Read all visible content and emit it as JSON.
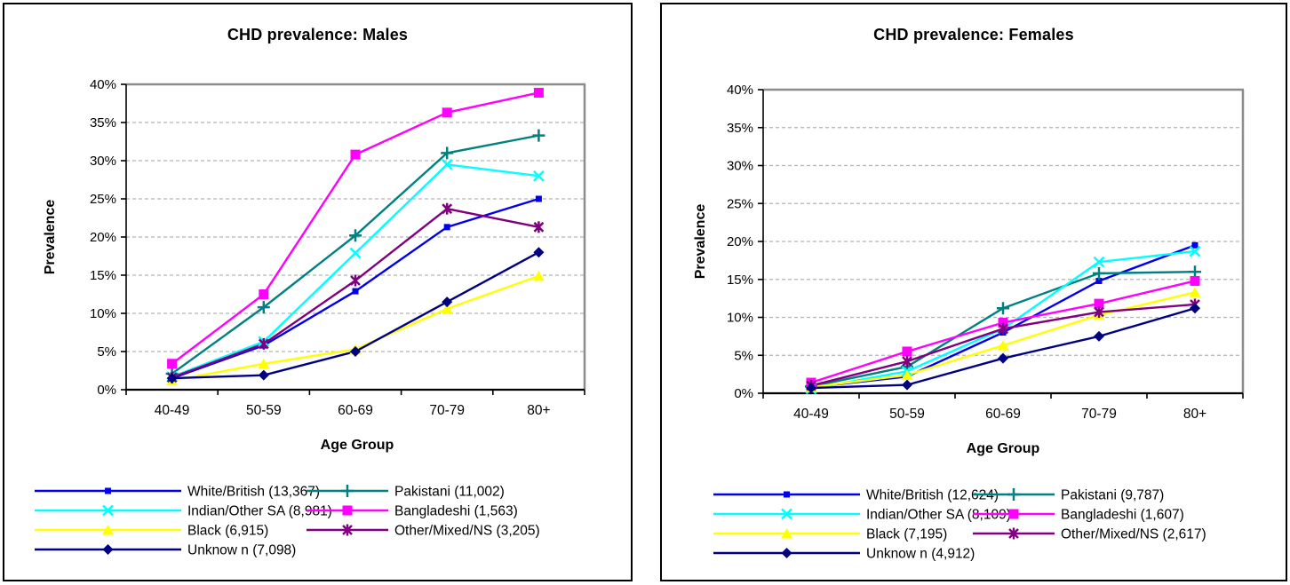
{
  "chart_data": [
    {
      "type": "line",
      "title": "CHD prevalence: Males",
      "xlabel": "Age Group",
      "ylabel": "Prevalence",
      "categories": [
        "40-49",
        "50-59",
        "60-69",
        "70-79",
        "80+"
      ],
      "ylim": [
        0,
        40
      ],
      "ytick_labels": [
        "0%",
        "5%",
        "10%",
        "15%",
        "20%",
        "25%",
        "30%",
        "35%",
        "40%"
      ],
      "grid": "horizontal dashed",
      "legend_position": "bottom two-column",
      "series": [
        {
          "name": "White/British (13,367)",
          "color": "#0000EE",
          "marker": "square-small",
          "values": [
            1.5,
            5.8,
            12.9,
            21.3,
            25.0
          ]
        },
        {
          "name": "Pakistani (11,002)",
          "color": "#008080",
          "marker": "plus",
          "values": [
            2.1,
            10.8,
            20.2,
            31.0,
            33.3
          ]
        },
        {
          "name": "Indian/Other SA (8,981)",
          "color": "#00FFFF",
          "marker": "x",
          "values": [
            1.7,
            6.3,
            17.9,
            29.5,
            28.0
          ]
        },
        {
          "name": "Bangladeshi (1,563)",
          "color": "#FF00FF",
          "marker": "square",
          "values": [
            3.4,
            12.5,
            30.8,
            36.3,
            38.9
          ]
        },
        {
          "name": "Black (6,915)",
          "color": "#FFFF00",
          "marker": "triangle",
          "values": [
            1.2,
            3.4,
            5.3,
            10.6,
            14.9
          ]
        },
        {
          "name": "Other/Mixed/NS (3,205)",
          "color": "#800080",
          "marker": "asterisk",
          "values": [
            1.6,
            6.0,
            14.3,
            23.7,
            21.3
          ]
        },
        {
          "name": "Unknow n (7,098)",
          "color": "#000080",
          "marker": "diamond",
          "values": [
            1.5,
            1.9,
            5.0,
            11.5,
            18.0
          ]
        }
      ]
    },
    {
      "type": "line",
      "title": "CHD prevalence: Females",
      "xlabel": "Age Group",
      "ylabel": "Prevalence",
      "categories": [
        "40-49",
        "50-59",
        "60-69",
        "70-79",
        "80+"
      ],
      "ylim": [
        0,
        40
      ],
      "ytick_labels": [
        "0%",
        "5%",
        "10%",
        "15%",
        "20%",
        "25%",
        "30%",
        "35%",
        "40%"
      ],
      "grid": "horizontal dashed",
      "legend_position": "bottom two-column",
      "series": [
        {
          "name": "White/British (12,624)",
          "color": "#0000EE",
          "marker": "square-small",
          "values": [
            0.8,
            2.2,
            8.0,
            14.8,
            19.5
          ]
        },
        {
          "name": "Pakistani (9,787)",
          "color": "#008080",
          "marker": "plus",
          "values": [
            0.9,
            3.5,
            11.2,
            15.8,
            16.0
          ]
        },
        {
          "name": "Indian/Other SA (8,109)",
          "color": "#00FFFF",
          "marker": "x",
          "values": [
            0.6,
            2.9,
            8.5,
            17.3,
            18.7
          ]
        },
        {
          "name": "Bangladeshi (1,607)",
          "color": "#FF00FF",
          "marker": "square",
          "values": [
            1.4,
            5.5,
            9.3,
            11.8,
            14.8
          ]
        },
        {
          "name": "Black (7,195)",
          "color": "#FFFF00",
          "marker": "triangle",
          "values": [
            0.8,
            2.4,
            6.3,
            10.3,
            13.3
          ]
        },
        {
          "name": "Other/Mixed/NS (2,617)",
          "color": "#800080",
          "marker": "asterisk",
          "values": [
            1.0,
            4.2,
            8.5,
            10.7,
            11.7
          ]
        },
        {
          "name": "Unknow n (4,912)",
          "color": "#000080",
          "marker": "diamond",
          "values": [
            0.7,
            1.1,
            4.6,
            7.5,
            11.2
          ]
        }
      ]
    }
  ],
  "style": {
    "gridline_color": "#b3b3b3",
    "plot_border_color": "#8c8c8c",
    "axis_color": "#000000",
    "background": "#ffffff"
  }
}
